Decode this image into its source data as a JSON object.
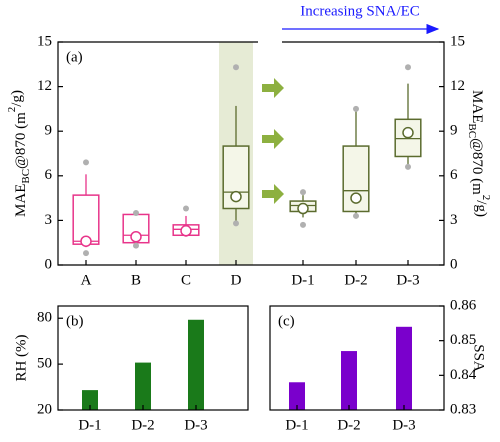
{
  "chart_data": [
    {
      "type": "box",
      "panel_label": "(a)",
      "annotation": "Increasing SNA/EC",
      "y_label": {
        "main": "MAE",
        "sub": "BC",
        "rest": "@870 (m",
        "sup": "2",
        "end": "/g)"
      },
      "categories": [
        "A",
        "B",
        "C",
        "D",
        "D-1",
        "D-2",
        "D-3"
      ],
      "colors": [
        "#e8348a",
        "#e8348a",
        "#e8348a",
        "#5b6b2e",
        "#5b6b2e",
        "#5b6b2e",
        "#5b6b2e"
      ],
      "highlight_color": "#e6ebd5",
      "outlier_color": "#b0b0b0",
      "boxes": [
        {
          "min": 1.2,
          "q1": 1.4,
          "median": 1.6,
          "q3": 4.7,
          "max": 6.1,
          "mean": 1.6,
          "outliers": [
            0.8,
            6.9
          ]
        },
        {
          "min": 1.5,
          "q1": 1.5,
          "median": 2.0,
          "q3": 3.4,
          "max": 3.4,
          "mean": 1.9,
          "outliers": [
            1.3,
            3.5
          ]
        },
        {
          "min": 1.9,
          "q1": 2.0,
          "median": 2.4,
          "q3": 2.7,
          "max": 3.3,
          "mean": 2.3,
          "outliers": [
            3.8
          ]
        },
        {
          "min": 2.8,
          "q1": 3.8,
          "median": 4.9,
          "q3": 8.0,
          "max": 10.7,
          "mean": 4.6,
          "outliers": [
            2.8,
            13.3
          ]
        },
        {
          "min": 3.2,
          "q1": 3.6,
          "median": 4.0,
          "q3": 4.3,
          "max": 4.7,
          "mean": 3.8,
          "outliers": [
            2.7,
            4.9
          ]
        },
        {
          "min": 3.3,
          "q1": 3.6,
          "median": 5.0,
          "q3": 8.0,
          "max": 10.5,
          "mean": 4.5,
          "outliers": [
            3.3,
            10.5
          ]
        },
        {
          "min": 6.6,
          "q1": 7.3,
          "median": 8.5,
          "q3": 9.8,
          "max": 12.2,
          "mean": 8.9,
          "outliers": [
            6.6,
            13.3
          ]
        }
      ],
      "ylim": [
        0,
        15
      ],
      "yticks": [
        0,
        3,
        6,
        9,
        12,
        15
      ]
    },
    {
      "type": "bar",
      "panel_label": "(b)",
      "y_label": "RH (%)",
      "categories": [
        "D-1",
        "D-2",
        "D-3"
      ],
      "values": [
        33,
        51,
        79
      ],
      "color": "#1a7a1a",
      "ylim": [
        20,
        88
      ],
      "yticks": [
        20,
        50,
        80
      ]
    },
    {
      "type": "bar",
      "panel_label": "(c)",
      "y_label": "SSA",
      "categories": [
        "D-1",
        "D-2",
        "D-3"
      ],
      "values": [
        0.838,
        0.847,
        0.854
      ],
      "color": "#7a00cc",
      "ylim": [
        0.83,
        0.86
      ],
      "yticks": [
        0.83,
        0.84,
        0.85,
        0.86
      ]
    }
  ]
}
